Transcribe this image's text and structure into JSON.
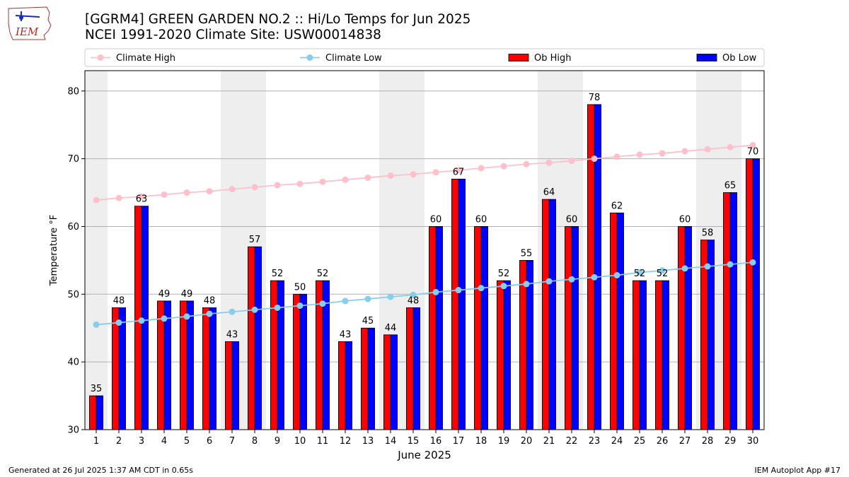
{
  "header": {
    "logo_text": "IEM",
    "title_line1": "[GGRM4] GREEN GARDEN NO.2 :: Hi/Lo Temps for Jun 2025",
    "title_line2": "NCEI 1991-2020 Climate Site: USW00014838"
  },
  "footer": {
    "generated": "Generated at 26 Jul 2025 1:37 AM CDT in 0.65s",
    "app": "IEM Autoplot App #17"
  },
  "colors": {
    "ob_high": "#ff0000",
    "ob_low": "#0000ff",
    "climate_high": "#ffc0cb",
    "climate_low": "#87ceeb",
    "weekend_shade": "#eeeeee",
    "grid": "#b0b0b0"
  },
  "chart_data": {
    "type": "bar",
    "xlabel": "June 2025",
    "ylabel": "Temperature °F",
    "ylim": [
      30,
      83
    ],
    "yticks": [
      30,
      40,
      50,
      60,
      70,
      80
    ],
    "grid": "horizontal",
    "legend_placement": "top, above plot",
    "categories": [
      "1",
      "2",
      "3",
      "4",
      "5",
      "6",
      "7",
      "8",
      "9",
      "10",
      "11",
      "12",
      "13",
      "14",
      "15",
      "16",
      "17",
      "18",
      "19",
      "20",
      "21",
      "22",
      "23",
      "24",
      "25",
      "26",
      "27",
      "28",
      "29",
      "30"
    ],
    "shaded_days": [
      1,
      7,
      8,
      14,
      15,
      21,
      22,
      28,
      29
    ],
    "series": [
      {
        "name": "Climate High",
        "kind": "line",
        "values": [
          63.9,
          64.2,
          64.4,
          64.7,
          65.0,
          65.2,
          65.5,
          65.8,
          66.1,
          66.3,
          66.6,
          66.9,
          67.2,
          67.5,
          67.7,
          68.0,
          68.3,
          68.6,
          68.9,
          69.2,
          69.4,
          69.7,
          70.0,
          70.3,
          70.6,
          70.8,
          71.1,
          71.4,
          71.7,
          72.0
        ]
      },
      {
        "name": "Climate Low",
        "kind": "line",
        "values": [
          45.5,
          45.8,
          46.1,
          46.4,
          46.7,
          47.1,
          47.4,
          47.7,
          48.0,
          48.3,
          48.6,
          49.0,
          49.3,
          49.6,
          49.9,
          50.3,
          50.6,
          50.9,
          51.2,
          51.5,
          51.9,
          52.2,
          52.5,
          52.8,
          53.2,
          53.5,
          53.8,
          54.1,
          54.4,
          54.7
        ]
      },
      {
        "name": "Ob High",
        "kind": "bar",
        "values": [
          35,
          48,
          63,
          49,
          49,
          48,
          43,
          57,
          52,
          50,
          52,
          43,
          45,
          44,
          48,
          60,
          67,
          60,
          52,
          55,
          64,
          60,
          78,
          62,
          52,
          52,
          60,
          58,
          65,
          70
        ]
      },
      {
        "name": "Ob Low",
        "kind": "bar",
        "values": [
          35,
          48,
          63,
          49,
          49,
          48,
          43,
          57,
          52,
          50,
          52,
          43,
          45,
          44,
          48,
          60,
          67,
          60,
          52,
          55,
          64,
          60,
          78,
          62,
          52,
          52,
          60,
          58,
          65,
          70
        ]
      }
    ],
    "bar_labels": [
      "35",
      "48",
      "63",
      "49",
      "49",
      "48",
      "43",
      "57",
      "52",
      "50",
      "52",
      "43",
      "45",
      "44",
      "48",
      "60",
      "67",
      "60",
      "52",
      "55",
      "64",
      "60",
      "78",
      "62",
      "52",
      "52",
      "60",
      "58",
      "65",
      "70"
    ]
  }
}
